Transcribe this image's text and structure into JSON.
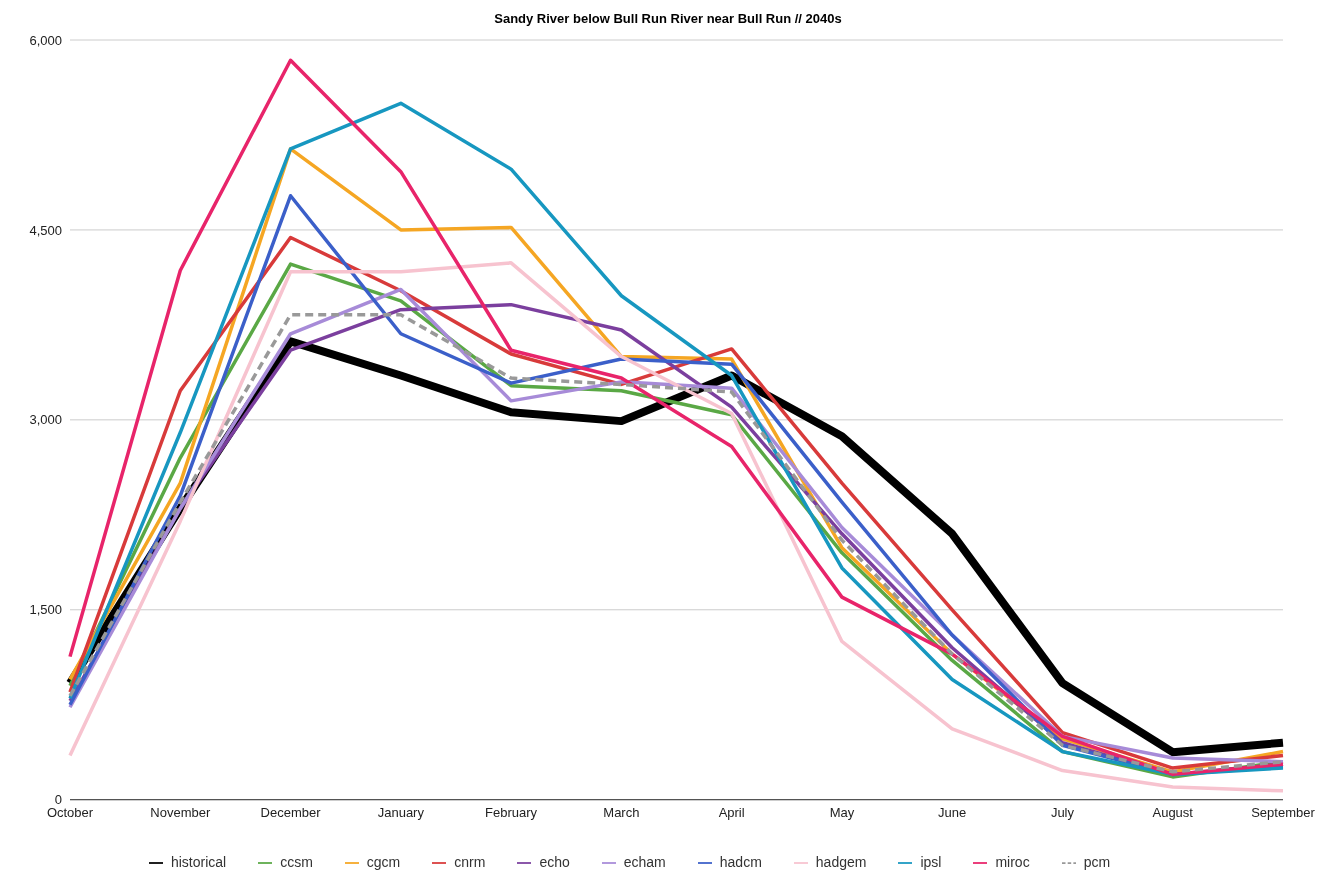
{
  "chart_data": {
    "type": "line",
    "title": "Sandy River below Bull Run River near Bull Run // 2040s",
    "categories": [
      "October",
      "November",
      "December",
      "January",
      "February",
      "March",
      "April",
      "May",
      "June",
      "July",
      "August",
      "September"
    ],
    "ylim": [
      0,
      6000
    ],
    "yticks": [
      {
        "value": 0,
        "label": "0"
      },
      {
        "value": 1500,
        "label": "1,500"
      },
      {
        "value": 3000,
        "label": "3,000"
      },
      {
        "value": 4500,
        "label": "4,500"
      },
      {
        "value": 6000,
        "label": "6,000"
      }
    ],
    "grid": "y",
    "legend": "bottom",
    "marker": "none",
    "series": [
      {
        "name": "historical",
        "color": "#000000",
        "values": [
          920,
          2300,
          3620,
          3350,
          3060,
          2990,
          3350,
          2870,
          2100,
          920,
          375,
          450
        ]
      },
      {
        "name": "ccsm",
        "color": "#5aa845",
        "values": [
          900,
          2700,
          4230,
          3940,
          3270,
          3230,
          3040,
          1950,
          1100,
          380,
          180,
          300
        ]
      },
      {
        "name": "cgcm",
        "color": "#f5a623",
        "values": [
          950,
          2500,
          5140,
          4500,
          4520,
          3500,
          3480,
          1990,
          1150,
          480,
          220,
          380
        ]
      },
      {
        "name": "cnrm",
        "color": "#d83a3a",
        "values": [
          850,
          3230,
          4440,
          4020,
          3520,
          3280,
          3560,
          2500,
          1500,
          530,
          250,
          350
        ]
      },
      {
        "name": "echo",
        "color": "#7b3f9e",
        "values": [
          780,
          2300,
          3550,
          3870,
          3910,
          3710,
          3100,
          2100,
          1200,
          450,
          200,
          280
        ]
      },
      {
        "name": "echam",
        "color": "#a78bd8",
        "values": [
          730,
          2300,
          3680,
          4030,
          3150,
          3300,
          3250,
          2150,
          1300,
          500,
          330,
          300
        ]
      },
      {
        "name": "hadcm",
        "color": "#3b5fc9",
        "values": [
          750,
          2400,
          4770,
          3680,
          3290,
          3480,
          3440,
          2350,
          1300,
          430,
          200,
          260
        ]
      },
      {
        "name": "hadgem",
        "color": "#f7c3cf",
        "values": [
          350,
          2200,
          4170,
          4170,
          4240,
          3500,
          3050,
          1250,
          560,
          230,
          100,
          70
        ]
      },
      {
        "name": "ipsl",
        "color": "#1797c0",
        "values": [
          800,
          2900,
          5140,
          5500,
          4980,
          3980,
          3350,
          1830,
          950,
          380,
          200,
          250
        ]
      },
      {
        "name": "miroc",
        "color": "#e8246a",
        "values": [
          1130,
          4180,
          5840,
          4960,
          3550,
          3330,
          2790,
          1600,
          1150,
          500,
          200,
          280
        ]
      },
      {
        "name": "pcm",
        "color": "#999999",
        "line_style": "dashed",
        "values": [
          820,
          2350,
          3830,
          3830,
          3330,
          3280,
          3220,
          2050,
          1150,
          430,
          220,
          300
        ]
      }
    ]
  }
}
